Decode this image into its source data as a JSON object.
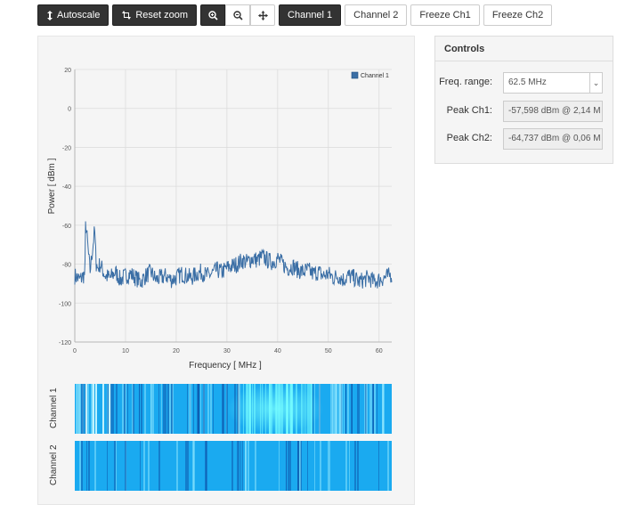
{
  "toolbar": {
    "autoscale": "Autoscale",
    "reset_zoom": "Reset zoom",
    "channel1": "Channel 1",
    "channel2": "Channel 2",
    "freeze_ch1": "Freeze Ch1",
    "freeze_ch2": "Freeze Ch2"
  },
  "controls": {
    "title": "Controls",
    "freq_range_label": "Freq. range:",
    "freq_range_value": "62.5 MHz",
    "peak_ch1_label": "Peak Ch1:",
    "peak_ch1_value": "-57,598 dBm @ 2,14 M",
    "peak_ch2_label": "Peak Ch2:",
    "peak_ch2_value": "-64,737 dBm @ 0,06 M"
  },
  "waterfall": {
    "ch1_label": "Channel 1",
    "ch2_label": "Channel 2"
  },
  "colors": {
    "series": "#3a6ea5",
    "waterfall_base": "#1aaaf0",
    "dark_button": "#333333"
  },
  "chart_data": {
    "type": "line",
    "xlabel": "Frequency [ MHz ]",
    "ylabel": "Power [ dBm ]",
    "xlim": [
      0,
      62.5
    ],
    "ylim": [
      -120,
      20
    ],
    "xticks": [
      0,
      10,
      20,
      30,
      40,
      50,
      60
    ],
    "yticks": [
      20,
      0,
      -20,
      -40,
      -60,
      -80,
      -100,
      -120
    ],
    "legend": "top-right",
    "grid": true,
    "series": [
      {
        "name": "Channel 1",
        "x": [
          0,
          1,
          2,
          2.14,
          3,
          3.9,
          4.3,
          5,
          6,
          7,
          8,
          9,
          10,
          11,
          12,
          13,
          14,
          15,
          16,
          17,
          18,
          19,
          20,
          21,
          22,
          23,
          24,
          25,
          26,
          27,
          28,
          29,
          30,
          31,
          32,
          33,
          34,
          35,
          36,
          37,
          38,
          39,
          40,
          41,
          42,
          43,
          44,
          45,
          46,
          47,
          48,
          49,
          50,
          51,
          52,
          53,
          54,
          55,
          56,
          57,
          58,
          59,
          60,
          61,
          62,
          62.5
        ],
        "y": [
          -86,
          -88,
          -85,
          -58,
          -84,
          -63,
          -83,
          -80,
          -86,
          -87,
          -84,
          -88,
          -86,
          -85,
          -87,
          -89,
          -86,
          -84,
          -88,
          -87,
          -86,
          -88,
          -87,
          -85,
          -86,
          -87,
          -85,
          -84,
          -86,
          -85,
          -83,
          -84,
          -82,
          -81,
          -80,
          -78,
          -79,
          -77,
          -78,
          -76,
          -78,
          -79,
          -77,
          -80,
          -82,
          -81,
          -83,
          -84,
          -83,
          -85,
          -84,
          -86,
          -85,
          -87,
          -86,
          -88,
          -86,
          -87,
          -89,
          -88,
          -87,
          -89,
          -88,
          -87,
          -86,
          -85
        ]
      }
    ]
  }
}
